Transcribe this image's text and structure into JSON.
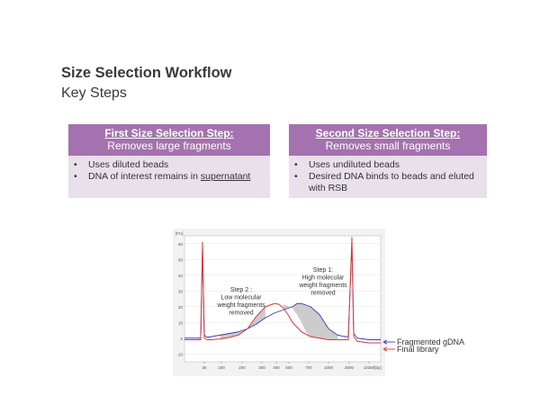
{
  "title": "Size Selection Workflow",
  "subtitle": "Key Steps",
  "boxes": {
    "first": {
      "heading": "First Size Selection Step:",
      "subheading": "Removes large fragments",
      "bullet1": "Uses diluted beads",
      "bullet2_pre": "DNA of interest remains in ",
      "bullet2_link": "supernatant"
    },
    "second": {
      "heading": "Second Size Selection Step:",
      "subheading": "Removes small fragments",
      "bullet1": "Uses undiluted beads",
      "bullet2": "Desired DNA binds to beads and eluted with RSB"
    }
  },
  "bullet_glyph": "•",
  "colors": {
    "header_bg": "#a472ae",
    "body_bg": "#e9e0ec",
    "fragmented": "#3b3bb0",
    "final": "#d83a3a"
  },
  "chart_data": {
    "type": "line",
    "ylabel": "[FU]",
    "xlabel": "[bp]",
    "ylim": [
      -15,
      65
    ],
    "y_ticks": [
      60,
      50,
      40,
      30,
      20,
      10,
      0,
      -10
    ],
    "x_ticks": [
      "35",
      "100",
      "200",
      "300",
      "400",
      "500",
      "700",
      "1000",
      "2000",
      "10380"
    ],
    "series": [
      {
        "name": "Fragmented gDNA",
        "color": "#3b3bb0",
        "x": [
          0,
          14,
          18,
          20,
          22,
          25,
          30,
          40,
          50,
          60,
          70,
          80,
          90,
          100,
          110,
          120,
          125,
          130,
          135,
          140,
          150,
          160,
          170,
          178,
          182,
          186,
          188,
          192,
          205,
          218
        ],
        "y": [
          0,
          0,
          0,
          58,
          2,
          0.5,
          1,
          2,
          3,
          4,
          6,
          9,
          13,
          16,
          18,
          20,
          22,
          22,
          21,
          20,
          15,
          6,
          2,
          1,
          1,
          60,
          3,
          0,
          -1,
          -1
        ]
      },
      {
        "name": "Final library",
        "color": "#d83a3a",
        "x": [
          0,
          14,
          18,
          20,
          22,
          25,
          30,
          40,
          50,
          60,
          70,
          80,
          90,
          100,
          105,
          110,
          115,
          120,
          130,
          140,
          150,
          160,
          170,
          178,
          182,
          186,
          188,
          192,
          205,
          218
        ],
        "y": [
          -1,
          -1,
          -1,
          61,
          0,
          -1,
          -1,
          -0.5,
          0.5,
          2,
          6,
          14,
          20,
          22,
          21.5,
          19,
          15,
          10,
          4,
          1,
          0,
          -1,
          -1,
          -1,
          -1,
          64,
          1,
          -2,
          -3,
          -3
        ]
      }
    ],
    "annotations": [
      {
        "line1": "Step 2 :",
        "line2": "Low molecular",
        "line3": "weight fragments",
        "line4": "removed"
      },
      {
        "line1": "Step 1:",
        "line2": "High molecular",
        "line3": "weight fragments",
        "line4": "removed"
      }
    ],
    "legend": [
      "Fragmented gDNA",
      "Final library"
    ],
    "legend_position": "right"
  }
}
